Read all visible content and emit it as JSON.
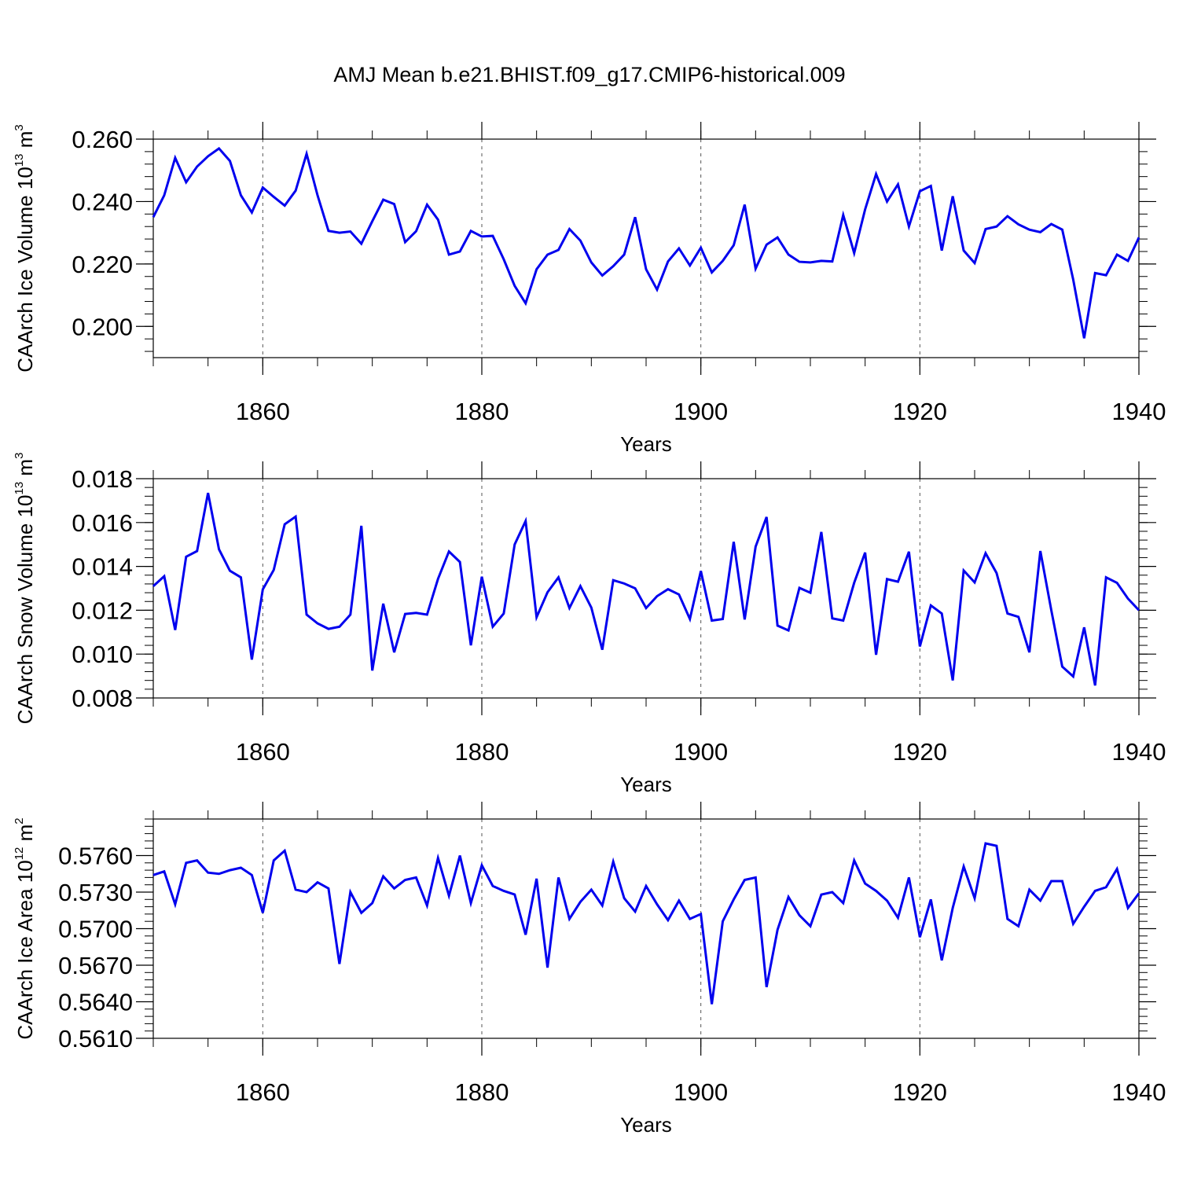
{
  "figure": {
    "title": "AMJ Mean b.e21.BHIST.f09_g17.CMIP6-historical.009"
  },
  "colors": {
    "series": "#0000ee",
    "axis": "#000000",
    "grid": "#555555"
  },
  "chart_data": [
    {
      "type": "line",
      "xlabel": "Years",
      "ylabel": {
        "prefix": "CAArch Ice Volume 10",
        "exp": "13",
        "unit": " m",
        "unit_exp": "3"
      },
      "xlim": [
        1850,
        1940
      ],
      "ylim": [
        0.19,
        0.26
      ],
      "xticks": [
        1860,
        1880,
        1900,
        1920,
        1940
      ],
      "xtick_labels": [
        "1860",
        "1880",
        "1900",
        "1920",
        "1940"
      ],
      "yticks": [
        0.2,
        0.22,
        0.24,
        0.26
      ],
      "ytick_labels": [
        "0.200",
        "0.220",
        "0.240",
        "0.260"
      ],
      "grid_x": true,
      "series": [
        {
          "x_start": 1850,
          "values": [
            0.235,
            0.242,
            0.254,
            0.2462,
            0.2512,
            0.2545,
            0.257,
            0.253,
            0.242,
            0.2365,
            0.2445,
            0.2415,
            0.2387,
            0.2435,
            0.2553,
            0.242,
            0.2306,
            0.23,
            0.2304,
            0.2265,
            0.2337,
            0.2406,
            0.2392,
            0.227,
            0.2305,
            0.239,
            0.2342,
            0.223,
            0.224,
            0.2306,
            0.2288,
            0.229,
            0.2215,
            0.213,
            0.2074,
            0.2183,
            0.223,
            0.2245,
            0.2312,
            0.2275,
            0.2205,
            0.2163,
            0.2193,
            0.223,
            0.235,
            0.2183,
            0.2118,
            0.2208,
            0.225,
            0.2195,
            0.2252,
            0.2173,
            0.221,
            0.226,
            0.239,
            0.2185,
            0.2262,
            0.2285,
            0.223,
            0.2207,
            0.2205,
            0.221,
            0.2208,
            0.2357,
            0.2235,
            0.2375,
            0.2488,
            0.24,
            0.2455,
            0.232,
            0.2433,
            0.245,
            0.2243,
            0.2417,
            0.2243,
            0.2203,
            0.2312,
            0.232,
            0.2353,
            0.2327,
            0.231,
            0.2302,
            0.2328,
            0.231,
            0.215,
            0.1962,
            0.2171,
            0.2164,
            0.223,
            0.221,
            0.2285
          ]
        }
      ]
    },
    {
      "type": "line",
      "xlabel": "Years",
      "ylabel": {
        "prefix": "CAArch Snow Volume 10",
        "exp": "13",
        "unit": " m",
        "unit_exp": "3"
      },
      "xlim": [
        1850,
        1940
      ],
      "ylim": [
        0.008,
        0.018
      ],
      "xticks": [
        1860,
        1880,
        1900,
        1920,
        1940
      ],
      "xtick_labels": [
        "1860",
        "1880",
        "1900",
        "1920",
        "1940"
      ],
      "yticks": [
        0.008,
        0.01,
        0.012,
        0.014,
        0.016,
        0.018
      ],
      "ytick_labels": [
        "0.008",
        "0.010",
        "0.012",
        "0.014",
        "0.016",
        "0.018"
      ],
      "grid_x": true,
      "series": [
        {
          "x_start": 1850,
          "values": [
            0.0131,
            0.01355,
            0.0111,
            0.01444,
            0.0147,
            0.01735,
            0.01478,
            0.0138,
            0.0135,
            0.00975,
            0.01295,
            0.01384,
            0.01592,
            0.01627,
            0.0118,
            0.0114,
            0.01115,
            0.01125,
            0.0118,
            0.01585,
            0.00925,
            0.0123,
            0.01008,
            0.01183,
            0.01188,
            0.0118,
            0.01343,
            0.01468,
            0.0142,
            0.0104,
            0.01353,
            0.01125,
            0.01185,
            0.015,
            0.01607,
            0.01168,
            0.01282,
            0.0135,
            0.0121,
            0.0131,
            0.01212,
            0.0102,
            0.01337,
            0.01322,
            0.013,
            0.0121,
            0.01264,
            0.01296,
            0.01272,
            0.0116,
            0.01379,
            0.01153,
            0.0116,
            0.01512,
            0.01158,
            0.0149,
            0.01625,
            0.0113,
            0.01108,
            0.01302,
            0.0128,
            0.01557,
            0.01163,
            0.01153,
            0.01325,
            0.01463,
            0.00997,
            0.01342,
            0.0133,
            0.01467,
            0.01035,
            0.01222,
            0.01185,
            0.0088,
            0.01381,
            0.01327,
            0.0146,
            0.0137,
            0.01185,
            0.0117,
            0.01008,
            0.0147,
            0.012,
            0.00943,
            0.00898,
            0.01122,
            0.00857,
            0.0135,
            0.01325,
            0.01253,
            0.012
          ]
        }
      ]
    },
    {
      "type": "line",
      "xlabel": "Years",
      "ylabel": {
        "prefix": "CAArch Ice Area 10",
        "exp": "12",
        "unit": " m",
        "unit_exp": "2"
      },
      "xlim": [
        1850,
        1940
      ],
      "ylim": [
        0.561,
        0.579
      ],
      "xticks": [
        1860,
        1880,
        1900,
        1920,
        1940
      ],
      "xtick_labels": [
        "1860",
        "1880",
        "1900",
        "1920",
        "1940"
      ],
      "yticks": [
        0.561,
        0.564,
        0.567,
        0.57,
        0.573,
        0.576
      ],
      "ytick_labels": [
        "0.5610",
        "0.5640",
        "0.5670",
        "0.5700",
        "0.5730",
        "0.5760"
      ],
      "grid_x": true,
      "series": [
        {
          "x_start": 1850,
          "values": [
            0.5744,
            0.5747,
            0.572,
            0.5754,
            0.5756,
            0.5746,
            0.5745,
            0.5748,
            0.575,
            0.5744,
            0.5713,
            0.5756,
            0.5764,
            0.5732,
            0.573,
            0.5738,
            0.5733,
            0.5671,
            0.573,
            0.5713,
            0.5721,
            0.5743,
            0.5733,
            0.574,
            0.5742,
            0.5719,
            0.5758,
            0.5727,
            0.576,
            0.5721,
            0.5752,
            0.5735,
            0.5731,
            0.5728,
            0.5695,
            0.5741,
            0.5668,
            0.5742,
            0.5708,
            0.5722,
            0.5732,
            0.5719,
            0.5755,
            0.5725,
            0.5714,
            0.5735,
            0.572,
            0.5707,
            0.5723,
            0.5708,
            0.5712,
            0.5638,
            0.5706,
            0.5724,
            0.574,
            0.5742,
            0.5652,
            0.5699,
            0.5726,
            0.5711,
            0.5702,
            0.5728,
            0.573,
            0.5721,
            0.5756,
            0.5737,
            0.5731,
            0.5723,
            0.5709,
            0.5742,
            0.5693,
            0.5724,
            0.5674,
            0.5717,
            0.5751,
            0.5725,
            0.577,
            0.5768,
            0.5708,
            0.5702,
            0.5732,
            0.5723,
            0.5739,
            0.5739,
            0.5704,
            0.5718,
            0.5731,
            0.5734,
            0.5749,
            0.5717,
            0.5729
          ]
        }
      ]
    }
  ]
}
